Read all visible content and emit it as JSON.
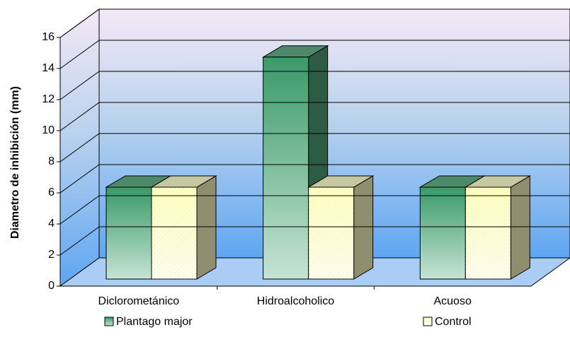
{
  "chart_data": {
    "type": "bar",
    "y_label": "Diametro de inhibición (mm)",
    "categories": [
      "Diclorometánico",
      "Hidroalcoholico",
      "Acuoso"
    ],
    "series": [
      {
        "name": "Plantago major",
        "color": "#3a9a68",
        "values": [
          6,
          14.5,
          6
        ]
      },
      {
        "name": "Control",
        "color": "#ffffc0",
        "values": [
          6,
          6,
          6
        ]
      }
    ],
    "ylim": [
      0,
      16
    ],
    "yticks": [
      0,
      2,
      4,
      6,
      8,
      10,
      12,
      14,
      16
    ],
    "grid": true,
    "legend": "bottom"
  }
}
